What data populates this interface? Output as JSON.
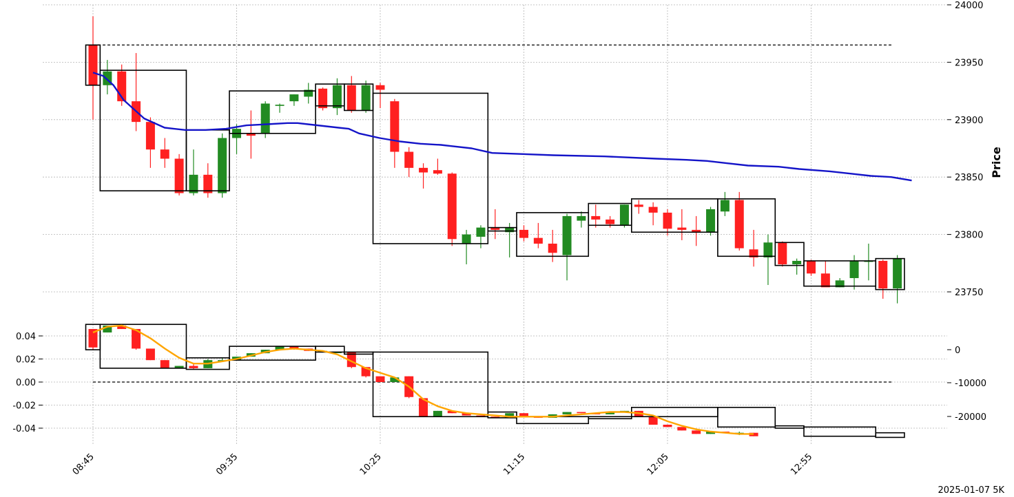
{
  "footer": "2025-01-07 5K",
  "chart_data": [
    {
      "type": "candlestick",
      "panel": "price",
      "ylabel": "Price",
      "ylim": [
        23730,
        24000
      ],
      "yticks": [
        23750,
        23800,
        23850,
        23900,
        23950,
        24000
      ],
      "grid": true,
      "x_ticks": [
        "08:45",
        "09:35",
        "10:25",
        "11:15",
        "12:05",
        "12:55"
      ],
      "colors": {
        "up": "#228b22",
        "down": "#ff2020",
        "ma": "#1414c8",
        "box": "#000000"
      },
      "reference_level": 23965,
      "candles": [
        [
          23965,
          23990,
          23900,
          23930
        ],
        [
          23930,
          23952,
          23922,
          23942
        ],
        [
          23942,
          23948,
          23912,
          23916
        ],
        [
          23916,
          23958,
          23890,
          23898
        ],
        [
          23898,
          23902,
          23858,
          23874
        ],
        [
          23874,
          23884,
          23858,
          23866
        ],
        [
          23866,
          23870,
          23834,
          23836
        ],
        [
          23836,
          23874,
          23834,
          23852
        ],
        [
          23852,
          23862,
          23832,
          23836
        ],
        [
          23836,
          23888,
          23832,
          23884
        ],
        [
          23884,
          23896,
          23870,
          23892
        ],
        [
          23888,
          23908,
          23866,
          23886
        ],
        [
          23888,
          23916,
          23884,
          23914
        ],
        [
          23912,
          23914,
          23906,
          23913
        ],
        [
          23916,
          23922,
          23912,
          23922
        ],
        [
          23920,
          23932,
          23914,
          23926
        ],
        [
          23927,
          23928,
          23908,
          23910
        ],
        [
          23910,
          23936,
          23904,
          23930
        ],
        [
          23930,
          23938,
          23906,
          23908
        ],
        [
          23908,
          23934,
          23906,
          23930
        ],
        [
          23930,
          23932,
          23910,
          23926
        ],
        [
          23916,
          23918,
          23858,
          23872
        ],
        [
          23872,
          23876,
          23850,
          23858
        ],
        [
          23858,
          23862,
          23840,
          23854
        ],
        [
          23856,
          23866,
          23852,
          23853
        ],
        [
          23853,
          23854,
          23790,
          23796
        ],
        [
          23792,
          23804,
          23774,
          23800
        ],
        [
          23798,
          23808,
          23788,
          23806
        ],
        [
          23806,
          23822,
          23796,
          23804
        ],
        [
          23802,
          23810,
          23780,
          23806
        ],
        [
          23804,
          23808,
          23794,
          23797
        ],
        [
          23797,
          23810,
          23788,
          23792
        ],
        [
          23792,
          23804,
          23776,
          23784
        ],
        [
          23782,
          23818,
          23760,
          23816
        ],
        [
          23812,
          23820,
          23806,
          23816
        ],
        [
          23816,
          23826,
          23806,
          23813
        ],
        [
          23813,
          23816,
          23806,
          23809
        ],
        [
          23808,
          23826,
          23806,
          23826
        ],
        [
          23826,
          23830,
          23818,
          23824
        ],
        [
          23824,
          23828,
          23808,
          23819
        ],
        [
          23819,
          23822,
          23799,
          23805
        ],
        [
          23806,
          23822,
          23795,
          23804
        ],
        [
          23804,
          23816,
          23790,
          23802
        ],
        [
          23802,
          23824,
          23799,
          23822
        ],
        [
          23820,
          23837,
          23816,
          23830
        ],
        [
          23830,
          23837,
          23786,
          23788
        ],
        [
          23787,
          23804,
          23772,
          23780
        ],
        [
          23780,
          23800,
          23756,
          23793
        ],
        [
          23793,
          23794,
          23772,
          23774
        ],
        [
          23774,
          23779,
          23765,
          23777
        ],
        [
          23777,
          23778,
          23764,
          23766
        ],
        [
          23766,
          23777,
          23755,
          23754
        ],
        [
          23754,
          23762,
          23754,
          23760
        ],
        [
          23762,
          23782,
          23752,
          23777
        ],
        [
          23777,
          23792,
          23760,
          23777
        ],
        [
          23777,
          23778,
          23744,
          23753
        ],
        [
          23753,
          23782,
          23740,
          23779
        ]
      ],
      "ma_line": [
        [
          0,
          23941
        ],
        [
          2,
          23938
        ],
        [
          4,
          23930
        ],
        [
          6,
          23917
        ],
        [
          10,
          23901
        ],
        [
          14,
          23893
        ],
        [
          18,
          23891
        ],
        [
          22,
          23891
        ],
        [
          26,
          23892
        ],
        [
          30,
          23895
        ],
        [
          34,
          23896
        ],
        [
          38,
          23897
        ],
        [
          40,
          23897
        ],
        [
          42,
          23896
        ],
        [
          48,
          23893
        ],
        [
          50,
          23892
        ],
        [
          52,
          23888
        ],
        [
          56,
          23884
        ],
        [
          60,
          23881
        ],
        [
          64,
          23879
        ],
        [
          68,
          23878
        ],
        [
          70,
          23877
        ],
        [
          74,
          23875
        ],
        [
          78,
          23871
        ],
        [
          84,
          23870
        ],
        [
          90,
          23869
        ],
        [
          100,
          23868
        ],
        [
          110,
          23866
        ],
        [
          116,
          23865
        ],
        [
          120,
          23864
        ],
        [
          124,
          23862
        ],
        [
          128,
          23860
        ],
        [
          134,
          23859
        ],
        [
          138,
          23857
        ],
        [
          144,
          23855
        ],
        [
          148,
          23853
        ],
        [
          152,
          23851
        ],
        [
          156,
          23850
        ],
        [
          160,
          23847
        ]
      ],
      "boxes": [
        [
          0,
          1,
          23930,
          23965
        ],
        [
          1,
          7,
          23838,
          23943
        ],
        [
          7,
          10,
          23838,
          23891
        ],
        [
          10,
          16,
          23888,
          23925
        ],
        [
          16,
          18,
          23912,
          23931
        ],
        [
          18,
          20,
          23908,
          23931
        ],
        [
          20,
          28,
          23792,
          23923
        ],
        [
          28,
          30,
          23803,
          23806
        ],
        [
          30,
          35,
          23781,
          23819
        ],
        [
          35,
          38,
          23808,
          23827
        ],
        [
          38,
          44,
          23802,
          23831
        ],
        [
          44,
          48,
          23781,
          23831
        ],
        [
          48,
          50,
          23773,
          23793
        ],
        [
          50,
          55,
          23755,
          23777
        ],
        [
          55,
          57,
          23752,
          23779
        ]
      ]
    },
    {
      "type": "candlestick",
      "panel": "oscillator",
      "ylim_left": [
        -0.049,
        0.051
      ],
      "yticks_left": [
        "0.04",
        "0.02",
        "0.00",
        "-0.02",
        "-0.04"
      ],
      "yticks_right": [
        "0",
        "-10000",
        "-20000"
      ],
      "grid": true,
      "colors": {
        "up": "#228b22",
        "down": "#ff2020",
        "signal": "#ffa500",
        "box": "#000000"
      },
      "reference_level": 0.0,
      "candles": [
        [
          0.046,
          0.046,
          0.028,
          0.03
        ],
        [
          0.043,
          0.049,
          0.043,
          0.049
        ],
        [
          0.049,
          0.049,
          0.046,
          0.046
        ],
        [
          0.046,
          0.046,
          0.028,
          0.029
        ],
        [
          0.029,
          0.029,
          0.019,
          0.019
        ],
        [
          0.019,
          0.019,
          0.012,
          0.012
        ],
        [
          0.012,
          0.014,
          0.012,
          0.014
        ],
        [
          0.014,
          0.016,
          0.011,
          0.012
        ],
        [
          0.012,
          0.02,
          0.012,
          0.019
        ],
        [
          0.019,
          0.021,
          0.018,
          0.019
        ],
        [
          0.019,
          0.022,
          0.019,
          0.022
        ],
        [
          0.022,
          0.025,
          0.022,
          0.025
        ],
        [
          0.025,
          0.028,
          0.025,
          0.028
        ],
        [
          0.028,
          0.031,
          0.028,
          0.031
        ],
        [
          0.031,
          0.031,
          0.028,
          0.029
        ],
        [
          0.029,
          0.029,
          0.027,
          0.027
        ],
        [
          0.027,
          0.027,
          0.027,
          0.027
        ],
        [
          0.026,
          0.026,
          0.026,
          0.026
        ],
        [
          0.026,
          0.026,
          0.012,
          0.013
        ],
        [
          0.013,
          0.013,
          0.004,
          0.005
        ],
        [
          0.005,
          0.005,
          0.0,
          0.0
        ],
        [
          0.0,
          0.004,
          0.0,
          0.004
        ],
        [
          0.005,
          0.005,
          -0.014,
          -0.013
        ],
        [
          -0.014,
          -0.014,
          -0.03,
          -0.03
        ],
        [
          -0.03,
          -0.025,
          -0.03,
          -0.025
        ],
        [
          -0.025,
          -0.025,
          -0.027,
          -0.027
        ],
        [
          -0.027,
          -0.027,
          -0.029,
          -0.029
        ],
        [
          -0.029,
          -0.029,
          -0.03,
          -0.03
        ],
        [
          -0.03,
          -0.03,
          -0.031,
          -0.031
        ],
        [
          -0.031,
          -0.027,
          -0.031,
          -0.027
        ],
        [
          -0.027,
          -0.027,
          -0.03,
          -0.03
        ],
        [
          -0.03,
          -0.03,
          -0.031,
          -0.031
        ],
        [
          -0.031,
          -0.028,
          -0.031,
          -0.028
        ],
        [
          -0.028,
          -0.026,
          -0.028,
          -0.026
        ],
        [
          -0.026,
          -0.026,
          -0.027,
          -0.027
        ],
        [
          -0.027,
          -0.027,
          -0.028,
          -0.028
        ],
        [
          -0.028,
          -0.026,
          -0.028,
          -0.026
        ],
        [
          -0.026,
          -0.025,
          -0.026,
          -0.025
        ],
        [
          -0.025,
          -0.025,
          -0.03,
          -0.03
        ],
        [
          -0.03,
          -0.03,
          -0.037,
          -0.037
        ],
        [
          -0.037,
          -0.037,
          -0.039,
          -0.039
        ],
        [
          -0.039,
          -0.039,
          -0.042,
          -0.042
        ],
        [
          -0.042,
          -0.042,
          -0.045,
          -0.045
        ],
        [
          -0.045,
          -0.043,
          -0.045,
          -0.043
        ],
        [
          -0.043,
          -0.043,
          -0.044,
          -0.044
        ],
        [
          -0.045,
          -0.043,
          -0.046,
          -0.044
        ],
        [
          -0.044,
          -0.044,
          -0.047,
          -0.047
        ]
      ],
      "signal_line": [
        [
          0,
          0.043
        ],
        [
          1,
          0.048
        ],
        [
          2,
          0.049
        ],
        [
          3,
          0.045
        ],
        [
          4,
          0.038
        ],
        [
          5,
          0.029
        ],
        [
          6,
          0.021
        ],
        [
          7,
          0.016
        ],
        [
          8,
          0.016
        ],
        [
          9,
          0.018
        ],
        [
          10,
          0.02
        ],
        [
          11,
          0.023
        ],
        [
          12,
          0.026
        ],
        [
          13,
          0.028
        ],
        [
          14,
          0.029
        ],
        [
          15,
          0.028
        ],
        [
          16,
          0.027
        ],
        [
          17,
          0.024
        ],
        [
          18,
          0.018
        ],
        [
          19,
          0.012
        ],
        [
          20,
          0.008
        ],
        [
          21,
          0.004
        ],
        [
          22,
          -0.004
        ],
        [
          23,
          -0.015
        ],
        [
          24,
          -0.021
        ],
        [
          25,
          -0.025
        ],
        [
          26,
          -0.027
        ],
        [
          27,
          -0.028
        ],
        [
          28,
          -0.029
        ],
        [
          29,
          -0.03
        ],
        [
          30,
          -0.03
        ],
        [
          31,
          -0.03
        ],
        [
          32,
          -0.03
        ],
        [
          33,
          -0.029
        ],
        [
          34,
          -0.028
        ],
        [
          35,
          -0.027
        ],
        [
          36,
          -0.026
        ],
        [
          37,
          -0.026
        ],
        [
          38,
          -0.027
        ],
        [
          39,
          -0.029
        ],
        [
          40,
          -0.034
        ],
        [
          41,
          -0.038
        ],
        [
          42,
          -0.041
        ],
        [
          43,
          -0.043
        ],
        [
          44,
          -0.044
        ],
        [
          45,
          -0.045
        ],
        [
          46,
          -0.045
        ]
      ],
      "boxes": [
        [
          0,
          1,
          0.028,
          0.05
        ],
        [
          1,
          7,
          0.012,
          0.05
        ],
        [
          7,
          10,
          0.011,
          0.021
        ],
        [
          10,
          16,
          0.019,
          0.031
        ],
        [
          16,
          18,
          0.026,
          0.031
        ],
        [
          18,
          20,
          0.026,
          0.026
        ],
        [
          20,
          28,
          -0.03,
          0.026
        ],
        [
          28,
          30,
          -0.031,
          -0.026
        ],
        [
          30,
          35,
          -0.036,
          -0.03
        ],
        [
          35,
          38,
          -0.031,
          -0.03
        ],
        [
          38,
          44,
          -0.03,
          -0.022
        ],
        [
          44,
          48,
          -0.039,
          -0.022
        ],
        [
          48,
          50,
          -0.04,
          -0.038
        ],
        [
          50,
          55,
          -0.047,
          -0.039
        ],
        [
          55,
          57,
          -0.048,
          -0.044
        ]
      ]
    }
  ]
}
